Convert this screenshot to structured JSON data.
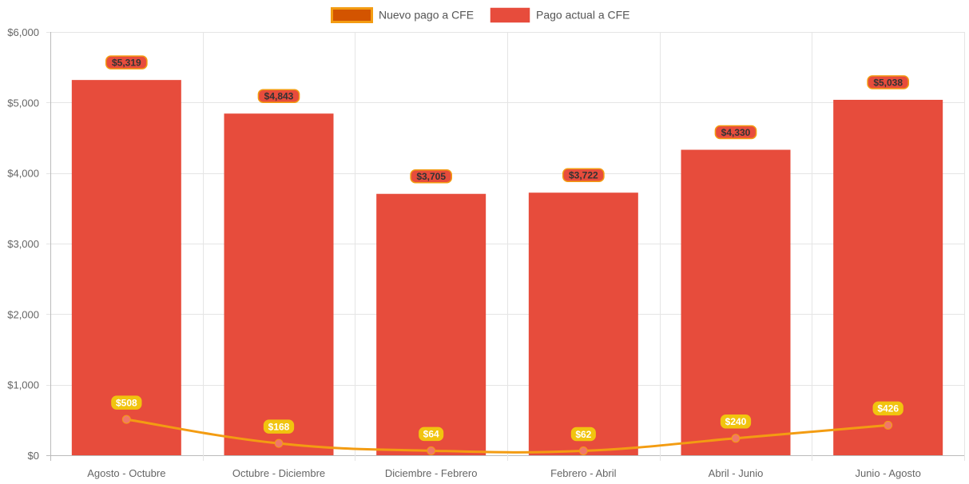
{
  "chart_data": {
    "type": "bar",
    "title": "",
    "xlabel": "",
    "ylabel": "",
    "ylim": [
      0,
      6000
    ],
    "yticks": [
      0,
      1000,
      2000,
      3000,
      4000,
      5000,
      6000
    ],
    "ytick_labels": [
      "$0",
      "$1,000",
      "$2,000",
      "$3,000",
      "$4,000",
      "$5,000",
      "$6,000"
    ],
    "grid": true,
    "legend_position": "top-center",
    "categories": [
      "Agosto - Octubre",
      "Octubre - Diciembre",
      "Diciembre - Febrero",
      "Febrero - Abril",
      "Abril - Junio",
      "Junio - Agosto"
    ],
    "series": [
      {
        "name": "Nuevo pago a CFE",
        "type": "line",
        "color": "#f39c12",
        "legend_fill": "#d35400",
        "point_color": "#f0776a",
        "label_bg": "#f1c40f",
        "label_text_color": "#ffffff",
        "values": [
          508,
          168,
          64,
          62,
          240,
          426
        ],
        "labels": [
          "$508",
          "$168",
          "$64",
          "$62",
          "$240",
          "$426"
        ]
      },
      {
        "name": "Pago actual a CFE",
        "type": "bar",
        "color": "#e74c3c",
        "label_bg": "#e74c3c",
        "label_border": "#f39c12",
        "label_text_color": "#333333",
        "values": [
          5319,
          4843,
          3705,
          3722,
          4330,
          5038
        ],
        "labels": [
          "$5,319",
          "$4,843",
          "$3,705",
          "$3,722",
          "$4,330",
          "$5,038"
        ]
      }
    ]
  }
}
